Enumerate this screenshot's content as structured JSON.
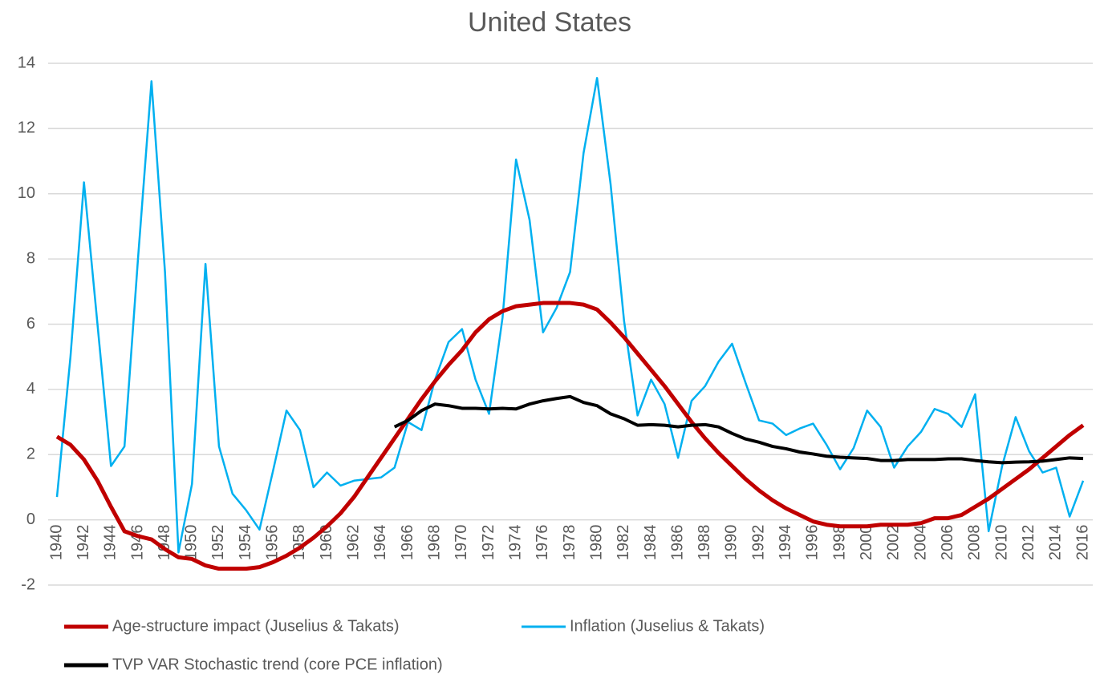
{
  "chart_data": {
    "type": "line",
    "title": "United States",
    "x": [
      1940,
      1941,
      1942,
      1943,
      1944,
      1945,
      1946,
      1947,
      1948,
      1949,
      1950,
      1951,
      1952,
      1953,
      1954,
      1955,
      1956,
      1957,
      1958,
      1959,
      1960,
      1961,
      1962,
      1963,
      1964,
      1965,
      1966,
      1967,
      1968,
      1969,
      1970,
      1971,
      1972,
      1973,
      1974,
      1975,
      1976,
      1977,
      1978,
      1979,
      1980,
      1981,
      1982,
      1983,
      1984,
      1985,
      1986,
      1987,
      1988,
      1989,
      1990,
      1991,
      1992,
      1993,
      1994,
      1995,
      1996,
      1997,
      1998,
      1999,
      2000,
      2001,
      2002,
      2003,
      2004,
      2005,
      2006,
      2007,
      2008,
      2009,
      2010,
      2011,
      2012,
      2013,
      2014,
      2015,
      2016
    ],
    "xlim": [
      1940,
      2016
    ],
    "xticks": [
      1940,
      1942,
      1944,
      1946,
      1948,
      1950,
      1952,
      1954,
      1956,
      1958,
      1960,
      1962,
      1964,
      1966,
      1968,
      1970,
      1972,
      1974,
      1976,
      1978,
      1980,
      1982,
      1984,
      1986,
      1988,
      1990,
      1992,
      1994,
      1996,
      1998,
      2000,
      2002,
      2004,
      2006,
      2008,
      2010,
      2012,
      2014,
      2016
    ],
    "ylim": [
      -2,
      14
    ],
    "yticks": [
      -2,
      0,
      2,
      4,
      6,
      8,
      10,
      12,
      14
    ],
    "grid": true,
    "legend": "bottom",
    "series": [
      {
        "name": "Age-structure impact (Juselius & Takats)",
        "color": "#c00000",
        "values": [
          2.55,
          2.3,
          1.85,
          1.2,
          0.4,
          -0.35,
          -0.5,
          -0.6,
          -0.9,
          -1.15,
          -1.2,
          -1.4,
          -1.5,
          -1.5,
          -1.5,
          -1.45,
          -1.3,
          -1.1,
          -0.85,
          -0.55,
          -0.2,
          0.2,
          0.7,
          1.3,
          1.9,
          2.5,
          3.1,
          3.7,
          4.25,
          4.75,
          5.2,
          5.75,
          6.15,
          6.4,
          6.55,
          6.6,
          6.65,
          6.65,
          6.65,
          6.6,
          6.45,
          6.05,
          5.6,
          5.1,
          4.6,
          4.1,
          3.55,
          3.0,
          2.5,
          2.05,
          1.65,
          1.25,
          0.9,
          0.6,
          0.35,
          0.15,
          -0.05,
          -0.15,
          -0.2,
          -0.2,
          -0.2,
          -0.15,
          -0.15,
          -0.15,
          -0.1,
          0.05,
          0.05,
          0.15,
          0.4,
          0.65,
          0.95,
          1.25,
          1.55,
          1.9,
          2.25,
          2.6,
          2.9
        ]
      },
      {
        "name": "Inflation (Juselius & Takats)",
        "color": "#00b0f0",
        "values": [
          0.7,
          5.0,
          10.35,
          6.0,
          1.65,
          2.25,
          8.0,
          13.45,
          7.6,
          -1.0,
          1.1,
          7.85,
          2.25,
          0.8,
          0.3,
          -0.3,
          1.5,
          3.35,
          2.75,
          1.0,
          1.45,
          1.05,
          1.2,
          1.25,
          1.3,
          1.6,
          3.0,
          2.75,
          4.3,
          5.45,
          5.85,
          4.3,
          3.25,
          6.2,
          11.05,
          9.2,
          5.75,
          6.5,
          7.6,
          11.25,
          13.55,
          10.3,
          6.1,
          3.2,
          4.3,
          3.55,
          1.9,
          3.65,
          4.1,
          4.85,
          5.4,
          4.2,
          3.05,
          2.95,
          2.6,
          2.8,
          2.95,
          2.3,
          1.55,
          2.2,
          3.35,
          2.85,
          1.6,
          2.25,
          2.7,
          3.4,
          3.25,
          2.85,
          3.85,
          -0.35,
          1.65,
          3.15,
          2.1,
          1.45,
          1.6,
          0.1,
          1.2
        ]
      },
      {
        "name": "TVP VAR Stochastic trend (core PCE inflation)",
        "color": "#000000",
        "values": [
          null,
          null,
          null,
          null,
          null,
          null,
          null,
          null,
          null,
          null,
          null,
          null,
          null,
          null,
          null,
          null,
          null,
          null,
          null,
          null,
          null,
          null,
          null,
          null,
          null,
          2.85,
          3.05,
          3.35,
          3.55,
          3.5,
          3.42,
          3.42,
          3.4,
          3.42,
          3.4,
          3.55,
          3.65,
          3.72,
          3.78,
          3.6,
          3.5,
          3.25,
          3.1,
          2.9,
          2.92,
          2.9,
          2.85,
          2.9,
          2.92,
          2.85,
          2.65,
          2.48,
          2.38,
          2.25,
          2.18,
          2.08,
          2.02,
          1.95,
          1.92,
          1.9,
          1.88,
          1.82,
          1.82,
          1.85,
          1.85,
          1.85,
          1.87,
          1.87,
          1.82,
          1.78,
          1.75,
          1.77,
          1.78,
          1.8,
          1.85,
          1.9,
          1.88
        ]
      }
    ]
  }
}
